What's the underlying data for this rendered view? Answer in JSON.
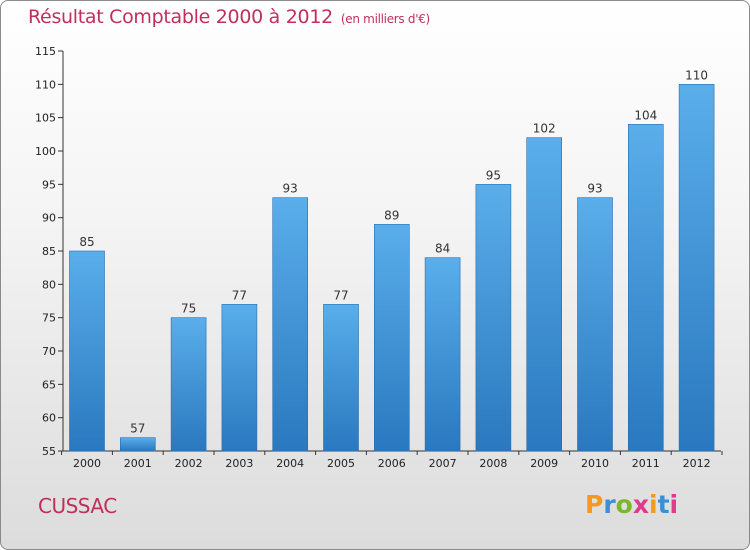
{
  "chart_data": {
    "type": "bar",
    "title": "Résultat Comptable 2000 à 2012",
    "subtitle": "(en milliers d'€)",
    "categories": [
      "2000",
      "2001",
      "2002",
      "2003",
      "2004",
      "2005",
      "2006",
      "2007",
      "2008",
      "2009",
      "2010",
      "2011",
      "2012"
    ],
    "values": [
      85,
      57,
      75,
      77,
      93,
      77,
      89,
      84,
      95,
      102,
      93,
      104,
      110
    ],
    "ylim": [
      55,
      115
    ],
    "yticks": [
      55,
      60,
      65,
      70,
      75,
      80,
      85,
      90,
      95,
      100,
      105,
      110,
      115
    ],
    "xlabel": "",
    "ylabel": "",
    "grid": false,
    "bar_color": "#3a8fd6"
  },
  "footer": {
    "place": "CUSSAC",
    "logo_letters": [
      "P",
      "r",
      "o",
      "x",
      "i",
      "t",
      "i"
    ],
    "logo_colors": [
      "#f39a1e",
      "#3a8fd6",
      "#7ab829",
      "#e03a8c",
      "#f39a1e",
      "#3a8fd6",
      "#e03a8c"
    ]
  }
}
